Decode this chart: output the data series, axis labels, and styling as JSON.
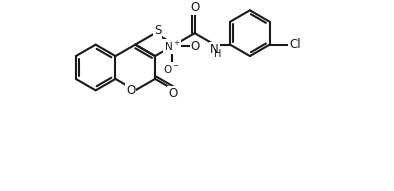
{
  "bg_color": "#ffffff",
  "bond_color": "#1a1a1a",
  "label_color": "#1a1a1a",
  "line_width": 1.5,
  "fig_width": 3.94,
  "fig_height": 1.91,
  "dpi": 100,
  "xlim": [
    0,
    10.5
  ],
  "ylim": [
    -1.8,
    5.2
  ]
}
